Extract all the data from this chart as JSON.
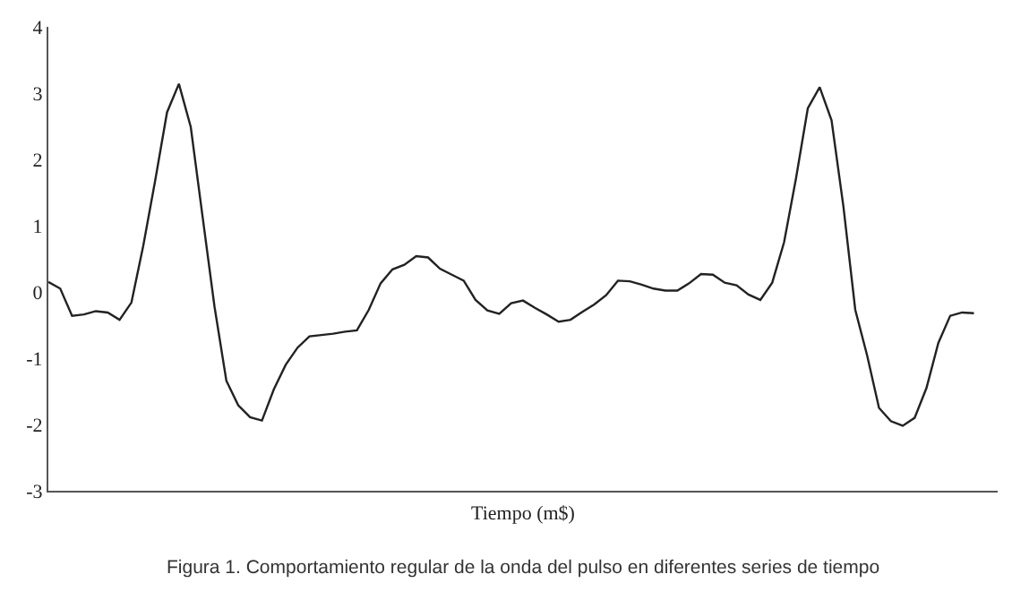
{
  "chart_data": {
    "type": "line",
    "xlabel": "Tiempo (m$)",
    "annotations": [
      "Figura 1. Comportamiento regular de la onda del pulso en diferentes series de tiempo"
    ],
    "categories": [
      null,
      null,
      null,
      null,
      null,
      null,
      null,
      null,
      null,
      null,
      null,
      null,
      null,
      null,
      null,
      null,
      null,
      null,
      null,
      null,
      null,
      null,
      null,
      null,
      null,
      null,
      null,
      null,
      null,
      null,
      null,
      null,
      null,
      null,
      null,
      null,
      null,
      null,
      null,
      null,
      null,
      null,
      null,
      null,
      null,
      null,
      null,
      null,
      null,
      null,
      null,
      null,
      null,
      null,
      null,
      null,
      null,
      null,
      null,
      null,
      null,
      null,
      null,
      null,
      null,
      null,
      null,
      null,
      null,
      null,
      null,
      null,
      null,
      null,
      null,
      null,
      null,
      null,
      null
    ],
    "series": [
      {
        "color": "#222222",
        "values": [
          0.15,
          0.05,
          -0.36,
          -0.34,
          -0.29,
          -0.31,
          -0.42,
          -0.16,
          0.7,
          1.68,
          2.71,
          3.14,
          2.49,
          1.13,
          -0.22,
          -1.34,
          -1.71,
          -1.89,
          -1.94,
          -1.47,
          -1.1,
          -0.84,
          -0.67,
          -0.65,
          -0.63,
          -0.6,
          -0.58,
          -0.27,
          0.13,
          0.34,
          0.41,
          0.54,
          0.52,
          0.35,
          0.26,
          0.17,
          -0.12,
          -0.28,
          -0.33,
          -0.17,
          -0.13,
          -0.24,
          -0.34,
          -0.45,
          -0.42,
          -0.3,
          -0.19,
          -0.05,
          0.17,
          0.16,
          0.11,
          0.05,
          0.02,
          0.02,
          0.13,
          0.27,
          0.26,
          0.14,
          0.1,
          -0.04,
          -0.12,
          0.14,
          0.75,
          1.71,
          2.77,
          3.09,
          2.59,
          1.29,
          -0.27,
          -0.96,
          -1.75,
          -1.95,
          -2.02,
          -1.9,
          -1.45,
          -0.77,
          -0.36,
          -0.31,
          -0.32
        ]
      }
    ],
    "ylim": [
      -3,
      4
    ],
    "yticks": [
      -3,
      -2,
      -1,
      0,
      1,
      2,
      3,
      4
    ],
    "tick_labels": "y",
    "marker": "none",
    "line_style": "solid"
  }
}
